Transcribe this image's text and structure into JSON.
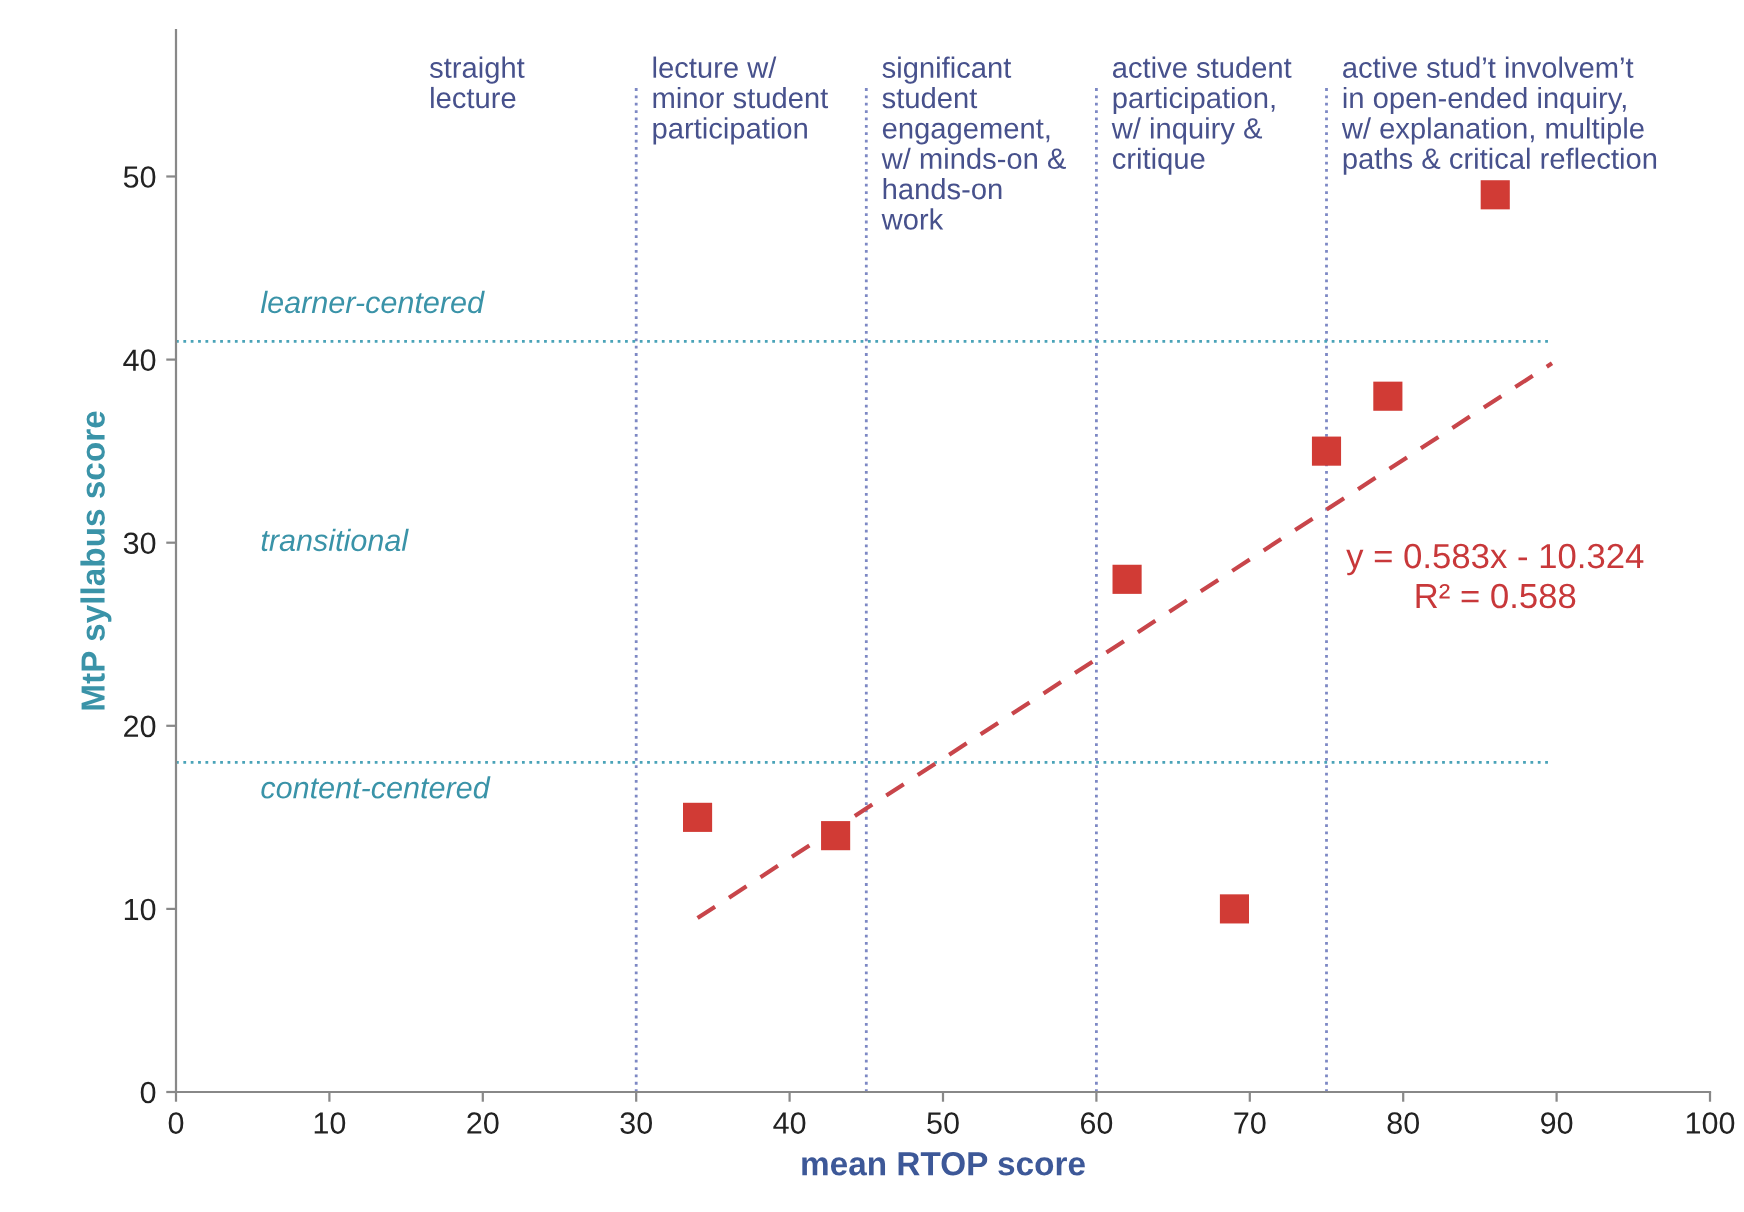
{
  "chart_data": {
    "type": "scatter",
    "xlabel": "mean RTOP score",
    "ylabel": "MtP syllabus score",
    "xlim": [
      0,
      100
    ],
    "xticks": [
      0,
      10,
      20,
      30,
      40,
      50,
      60,
      70,
      80,
      90,
      100
    ],
    "ylim": [
      0,
      58
    ],
    "yticks": [
      0,
      10,
      20,
      30,
      40,
      50
    ],
    "marker": "square",
    "grid": false,
    "legend": false,
    "series": [
      {
        "color": "#d13b35",
        "x": [
          34,
          43,
          62,
          69,
          75,
          79,
          86
        ],
        "values": [
          15,
          14,
          28,
          10,
          35,
          38,
          49
        ]
      },
      {
        "type": "line",
        "color": "#c8454a",
        "line_style": "dashed",
        "marker": "none",
        "x": [
          34,
          89.7
        ],
        "values": [
          9.5,
          39.8
        ]
      }
    ],
    "ref_lines": [
      {
        "axis": "x",
        "value": 30,
        "color": "#7d88c4",
        "line_style": "dotted"
      },
      {
        "axis": "x",
        "value": 45,
        "color": "#7d88c4",
        "line_style": "dotted"
      },
      {
        "axis": "x",
        "value": 60,
        "color": "#7d88c4",
        "line_style": "dotted"
      },
      {
        "axis": "x",
        "value": 75,
        "color": "#7d88c4",
        "line_style": "dotted"
      },
      {
        "axis": "y",
        "value": 41,
        "color": "#4aa3b8",
        "line_style": "dotted"
      },
      {
        "axis": "y",
        "value": 18,
        "color": "#4aa3b8",
        "line_style": "dotted"
      }
    ],
    "annotations": [
      "straight\nlecture",
      "lecture w/\nminor student\nparticipation",
      "significant\nstudent\nengagement,\nw/ minds-on &\nhands-on\nwork",
      "active student\nparticipation,\nw/ inquiry &\ncritique",
      "active stud’t involvem’t\nin open-ended inquiry,\nw/ explanation, multiple\npaths & critical reflection",
      "learner-centered",
      "transitional",
      "content-centered",
      "y = 0.583x - 10.324\nR² = 0.588"
    ]
  }
}
